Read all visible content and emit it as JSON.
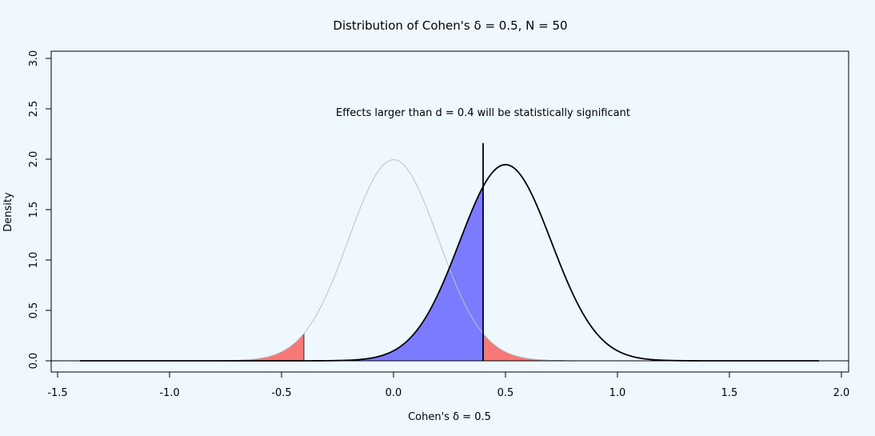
{
  "chart_data": {
    "type": "area",
    "title": "Distribution of Cohen's δ = 0.5, N = 50",
    "xlabel": "Cohen's δ = 0.5",
    "ylabel": "Density",
    "annotation": "Effects larger than d =  0.4 will be statistically significant",
    "xlim": [
      -1.5,
      2.0
    ],
    "ylim": [
      0.0,
      3.0
    ],
    "x_ticks": [
      "-1.5",
      "-1.0",
      "-0.5",
      "0.0",
      "0.5",
      "1.0",
      "1.5",
      "2.0"
    ],
    "y_ticks": [
      "0.0",
      "0.5",
      "1.0",
      "1.5",
      "2.0",
      "2.5",
      "3.0"
    ],
    "grid": false,
    "critical_value": 0.4,
    "series": [
      {
        "mean": 0.0,
        "sd": 0.2,
        "x_range": [
          -1.4,
          1.4
        ],
        "color": "#c0c0c0"
      },
      {
        "mean": 0.5,
        "sd": 0.205,
        "x_range": [
          -1.4,
          1.9
        ],
        "color": "#000000"
      }
    ],
    "shaded_regions": [
      {
        "color": "#f87878",
        "x_from": -1.4,
        "x_to": -0.4,
        "curve": 0
      },
      {
        "color": "#f87878",
        "x_from": 0.4,
        "x_to": 1.4,
        "curve": 0
      },
      {
        "color": "#7b7bff",
        "x_from": -1.4,
        "x_to": 0.4,
        "curve": 1
      }
    ]
  }
}
